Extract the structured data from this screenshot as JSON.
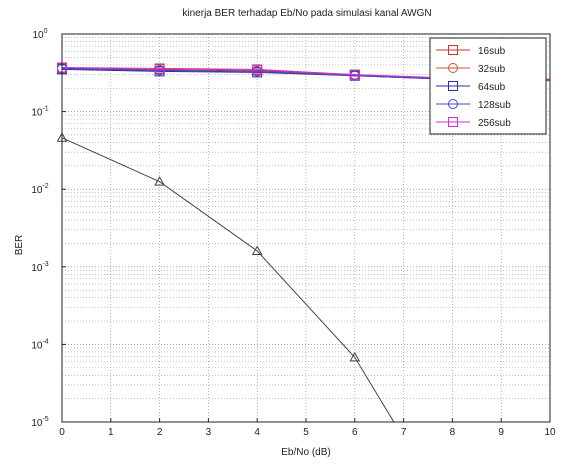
{
  "chart_data": {
    "type": "line",
    "title": "kinerja BER terhadap Eb/No pada simulasi kanal AWGN",
    "xlabel": "Eb/No (dB)",
    "ylabel": "BER",
    "xlim": [
      0,
      10
    ],
    "ylim": [
      1e-05,
      1
    ],
    "yscale": "log",
    "grid": "on",
    "legend_position": "top-right",
    "x_ticks": [
      0,
      1,
      2,
      3,
      4,
      5,
      6,
      7,
      8,
      9,
      10
    ],
    "y_ticks": [
      {
        "value": 1,
        "base": "10",
        "exp": "0"
      },
      {
        "value": 0.1,
        "base": "10",
        "exp": "-1"
      },
      {
        "value": 0.01,
        "base": "10",
        "exp": "-2"
      },
      {
        "value": 0.001,
        "base": "10",
        "exp": "-3"
      },
      {
        "value": 0.0001,
        "base": "10",
        "exp": "-4"
      },
      {
        "value": 1e-05,
        "base": "10",
        "exp": "-5"
      }
    ],
    "series": [
      {
        "name": "16sub",
        "color": "#cc3333",
        "marker": "square",
        "x": [
          0,
          2,
          4,
          6,
          8,
          10
        ],
        "y": [
          0.36,
          0.35,
          0.34,
          0.3,
          0.26,
          0.26
        ]
      },
      {
        "name": "32sub",
        "color": "#cc5533",
        "marker": "circle",
        "x": [
          0,
          2,
          4,
          6,
          8,
          10
        ],
        "y": [
          0.36,
          0.34,
          0.33,
          0.3,
          0.26,
          0.26
        ]
      },
      {
        "name": "64sub",
        "color": "#2b2bb0",
        "marker": "square",
        "x": [
          0,
          2,
          4,
          6,
          8,
          10
        ],
        "y": [
          0.35,
          0.33,
          0.32,
          0.29,
          0.26,
          0.26
        ]
      },
      {
        "name": "128sub",
        "color": "#4444cc",
        "marker": "circle",
        "x": [
          0,
          2,
          4,
          6,
          8,
          10
        ],
        "y": [
          0.36,
          0.34,
          0.33,
          0.29,
          0.26,
          0.25
        ]
      },
      {
        "name": "256sub",
        "color": "#cc33cc",
        "marker": "square",
        "x": [
          0,
          2,
          4,
          6,
          8,
          10
        ],
        "y": [
          0.37,
          0.36,
          0.35,
          0.3,
          0.27,
          0.26
        ]
      },
      {
        "name": "",
        "color": "#444444",
        "marker": "triangle",
        "legend": false,
        "x": [
          0,
          2,
          4,
          6,
          6.8
        ],
        "y": [
          0.046,
          0.0125,
          0.0016,
          6.8e-05,
          1e-05
        ]
      }
    ]
  }
}
